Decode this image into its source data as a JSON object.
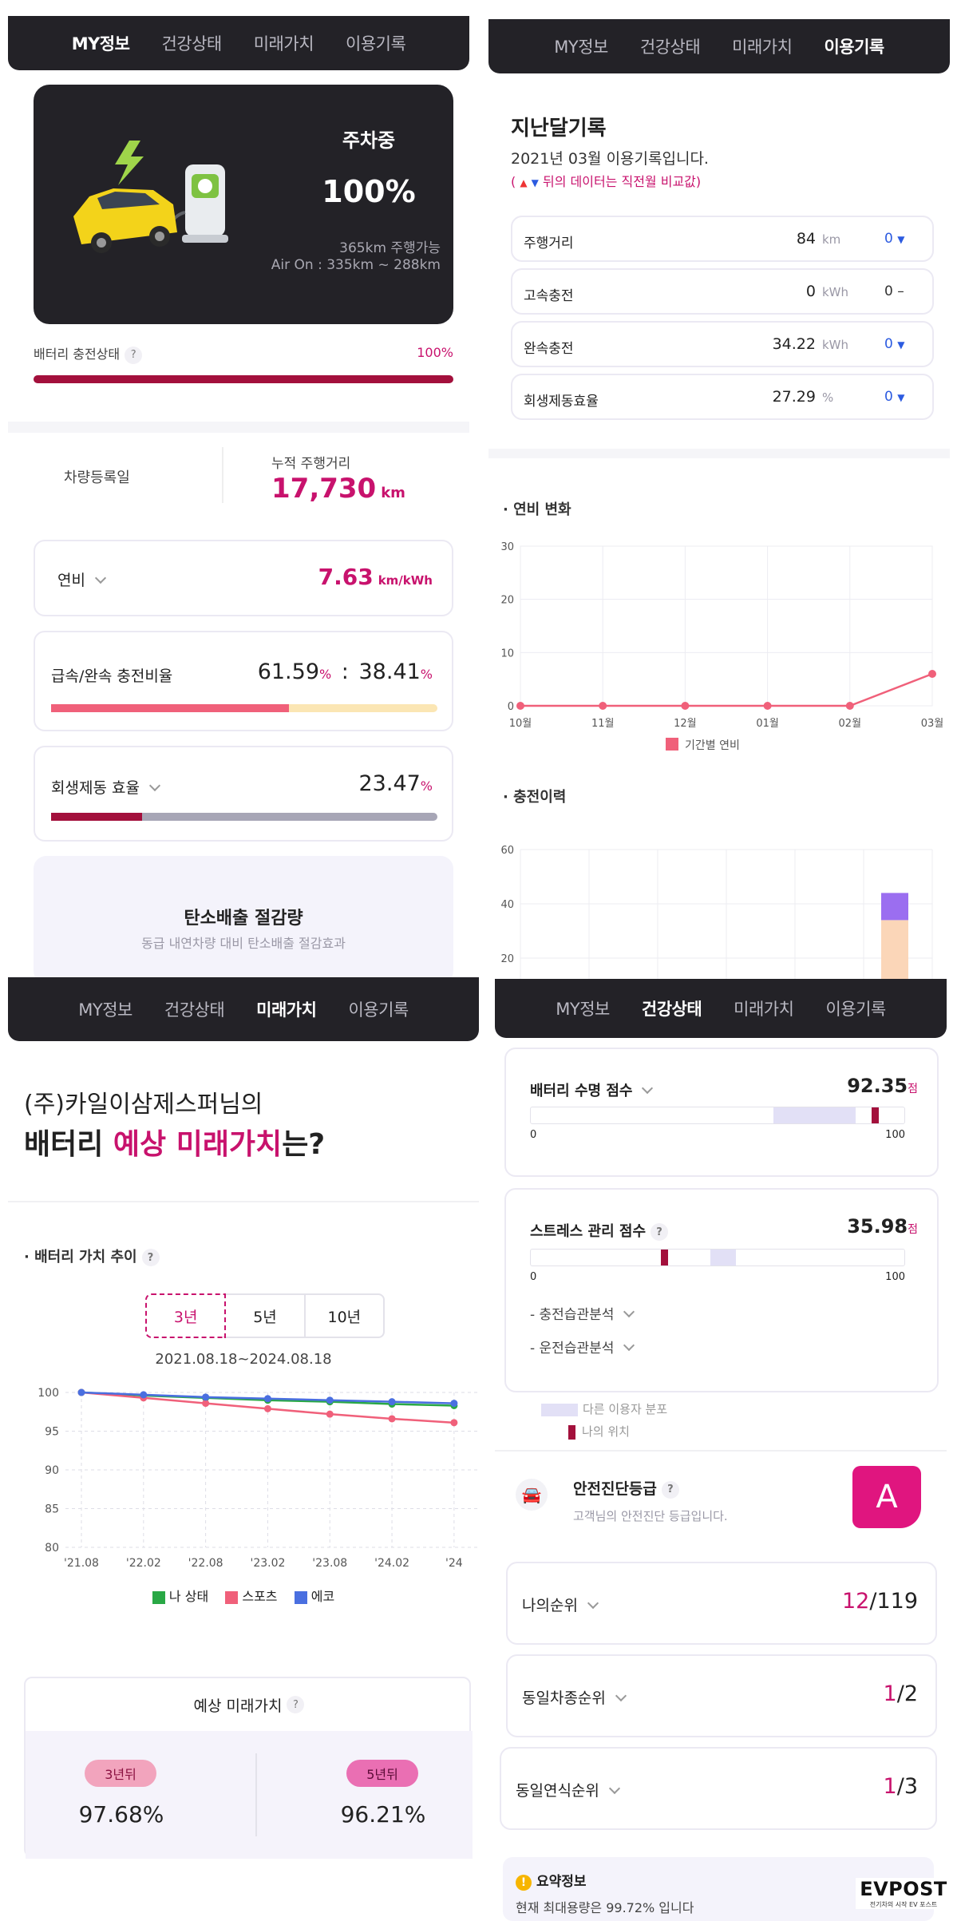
{
  "p1": {
    "tabs": [
      "MY정보",
      "건강상태",
      "미래가치",
      "이용기록"
    ],
    "status": "주차중",
    "charge": "100%",
    "range": "365km 주행가능",
    "air_on": "Air On : 335km ~ 288km",
    "battery_label": "배터리 충전상태",
    "battery_pct": "100%",
    "battery_fill": 1.0,
    "reg_label": "차량등록일",
    "odo_label": "누적 주행거리",
    "odo_value": "17,730",
    "odo_unit": "km",
    "eff_label": "연비",
    "eff_value": "7.63",
    "eff_unit": "km/kWh",
    "ratio_label": "급속/완속 충전비율",
    "ratio_fast": "61.59",
    "ratio_sep": ":",
    "ratio_slow": "38.41",
    "pct": "%",
    "ratio_fill": 0.6159,
    "regen_label": "회생제동 효율",
    "regen_value": "23.47",
    "regen_fill": 0.2347,
    "carbon_title": "탄소배출 절감량",
    "carbon_sub": "동급 내연차량 대비 탄소배출 절감효과"
  },
  "p2": {
    "tabs": [
      "MY정보",
      "건강상태",
      "미래가치",
      "이용기록"
    ],
    "title": "지난달기록",
    "subtitle": "2021년 03월 이용기록입니다.",
    "legend_note_prefix": "(",
    "legend_note": "뒤의 데이터는 직전월 비교값)",
    "rows": [
      {
        "label": "주행거리",
        "value": "84",
        "unit": "km",
        "delta": "0"
      },
      {
        "label": "고속충전",
        "value": "0",
        "unit": "kWh",
        "delta": "0"
      },
      {
        "label": "완속충전",
        "value": "34.22",
        "unit": "kWh",
        "delta": "0"
      },
      {
        "label": "회생제동효율",
        "value": "27.29",
        "unit": "%",
        "delta": "0"
      }
    ],
    "eff_section": "연비 변화",
    "charge_section": "충전이력",
    "eff_legend": "기간별 연비"
  },
  "p3": {
    "tabs": [
      "MY정보",
      "건강상태",
      "미래가치",
      "이용기록"
    ],
    "owner_line": "(주)카일이삼제스퍼님의",
    "headline_a": "배터리",
    "headline_b": "예상 미래가치",
    "headline_c": "는?",
    "section": "배터리 가치 추이",
    "periods": [
      "3년",
      "5년",
      "10년"
    ],
    "date_range": "2021.08.18~2024.08.18",
    "future_title": "예상 미래가치",
    "future": [
      {
        "badge": "3년뒤",
        "value": "97.68%"
      },
      {
        "badge": "5년뒤",
        "value": "96.21%"
      }
    ]
  },
  "p4": {
    "tabs": [
      "MY정보",
      "건강상태",
      "미래가치",
      "이용기록"
    ],
    "life_label": "배터리 수명 점수",
    "life_value": "92.35",
    "score_unit": "점",
    "life_marker": 0.9235,
    "life_dist": [
      0.65,
      0.87
    ],
    "stress_label": "스트레스 관리 점수",
    "stress_value": "35.98",
    "stress_marker": 0.3598,
    "stress_dist": [
      0.48,
      0.55
    ],
    "scale_min": "0",
    "scale_max": "100",
    "sub1": "- 충전습관분석",
    "sub2": "- 운전습관분석",
    "legend_dist": "다른 이용자 분포",
    "legend_mine": "나의 위치",
    "safety_title": "안전진단등급",
    "safety_sub": "고객님의 안전진단 등급입니다.",
    "grade": "A",
    "ranks": [
      {
        "label": "나의순위",
        "value": "12",
        "total": "/119"
      },
      {
        "label": "동일차종순위",
        "value": "1",
        "total": "/2"
      },
      {
        "label": "동일연식순위",
        "value": "1",
        "total": "/3"
      }
    ],
    "summary_title": "요약정보",
    "summary_text": "현재 최대용량은 99.72% 입니다"
  },
  "watermark": {
    "brand": "EVPOST",
    "tagline": "전기차의 시작 EV 포스트"
  },
  "colors": {
    "accent": "#c8126d",
    "dark": "#232227",
    "bar_red": "#a3103c",
    "salmon": "#f0607a",
    "cream": "#fbe6b4"
  },
  "chart_data": [
    {
      "type": "line",
      "title": "연비 변화",
      "categories": [
        "10월",
        "11월",
        "12월",
        "01월",
        "02월",
        "03월"
      ],
      "series": [
        {
          "name": "기간별 연비",
          "values": [
            0,
            0,
            0,
            0,
            0,
            6
          ]
        }
      ],
      "ylim": [
        0,
        30
      ],
      "yticks": [
        0,
        10,
        20,
        30
      ],
      "grid": true,
      "legend": "bottom"
    },
    {
      "type": "bar",
      "title": "충전이력",
      "yticks": [
        20,
        40,
        60
      ],
      "ylim": [
        0,
        60
      ],
      "series": [
        {
          "values": [
            34
          ]
        },
        {
          "values": [
            10
          ]
        }
      ],
      "grid": true
    },
    {
      "type": "line",
      "title": "배터리 가치 추이",
      "categories": [
        "'21.08",
        "'22.02",
        "'22.08",
        "'23.02",
        "'23.08",
        "'24.02",
        "'24"
      ],
      "series": [
        {
          "name": "나 상태",
          "values": [
            100,
            99.6,
            99.3,
            99.0,
            98.8,
            98.5,
            98.3
          ],
          "color": "#29a845"
        },
        {
          "name": "스포츠",
          "values": [
            100,
            99.3,
            98.6,
            97.9,
            97.2,
            96.6,
            96.1
          ],
          "color": "#f0607a"
        },
        {
          "name": "에코",
          "values": [
            100,
            99.7,
            99.4,
            99.2,
            99.0,
            98.8,
            98.6
          ],
          "color": "#4a6fe0"
        }
      ],
      "yticks": [
        80,
        85,
        90,
        95,
        100
      ],
      "ylim": [
        80,
        100
      ],
      "grid": true,
      "legend": "bottom"
    }
  ]
}
